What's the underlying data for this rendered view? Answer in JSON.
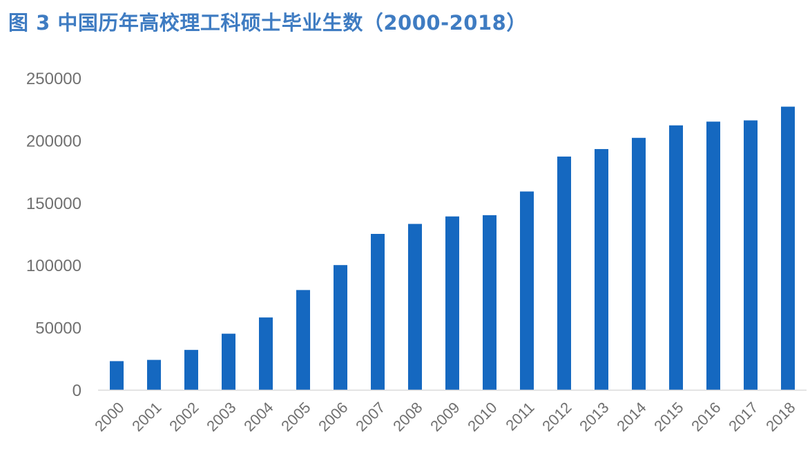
{
  "title": "图 3 中国历年高校理工科硕士毕业生数（2000-2018）",
  "colors": {
    "title": "#3f7cc2",
    "bar": "#1568c0",
    "axis_text": "#707070",
    "axis_line": "#d9d9d9"
  },
  "chart_data": {
    "type": "bar",
    "title": "图 3 中国历年高校理工科硕士毕业生数（2000-2018）",
    "xlabel": "",
    "ylabel": "",
    "categories": [
      "2000",
      "2001",
      "2002",
      "2003",
      "2004",
      "2005",
      "2006",
      "2007",
      "2008",
      "2009",
      "2010",
      "2011",
      "2012",
      "2013",
      "2014",
      "2015",
      "2016",
      "2017",
      "2018"
    ],
    "values": [
      23000,
      24000,
      32000,
      45000,
      58000,
      80000,
      100000,
      125000,
      133000,
      139000,
      140000,
      159000,
      187000,
      193000,
      202000,
      212000,
      215000,
      216000,
      227000
    ],
    "ylim": [
      0,
      250000
    ],
    "yticks": [
      "0",
      "50000",
      "100000",
      "150000",
      "200000",
      "250000"
    ],
    "grid": false,
    "legend": "none"
  }
}
